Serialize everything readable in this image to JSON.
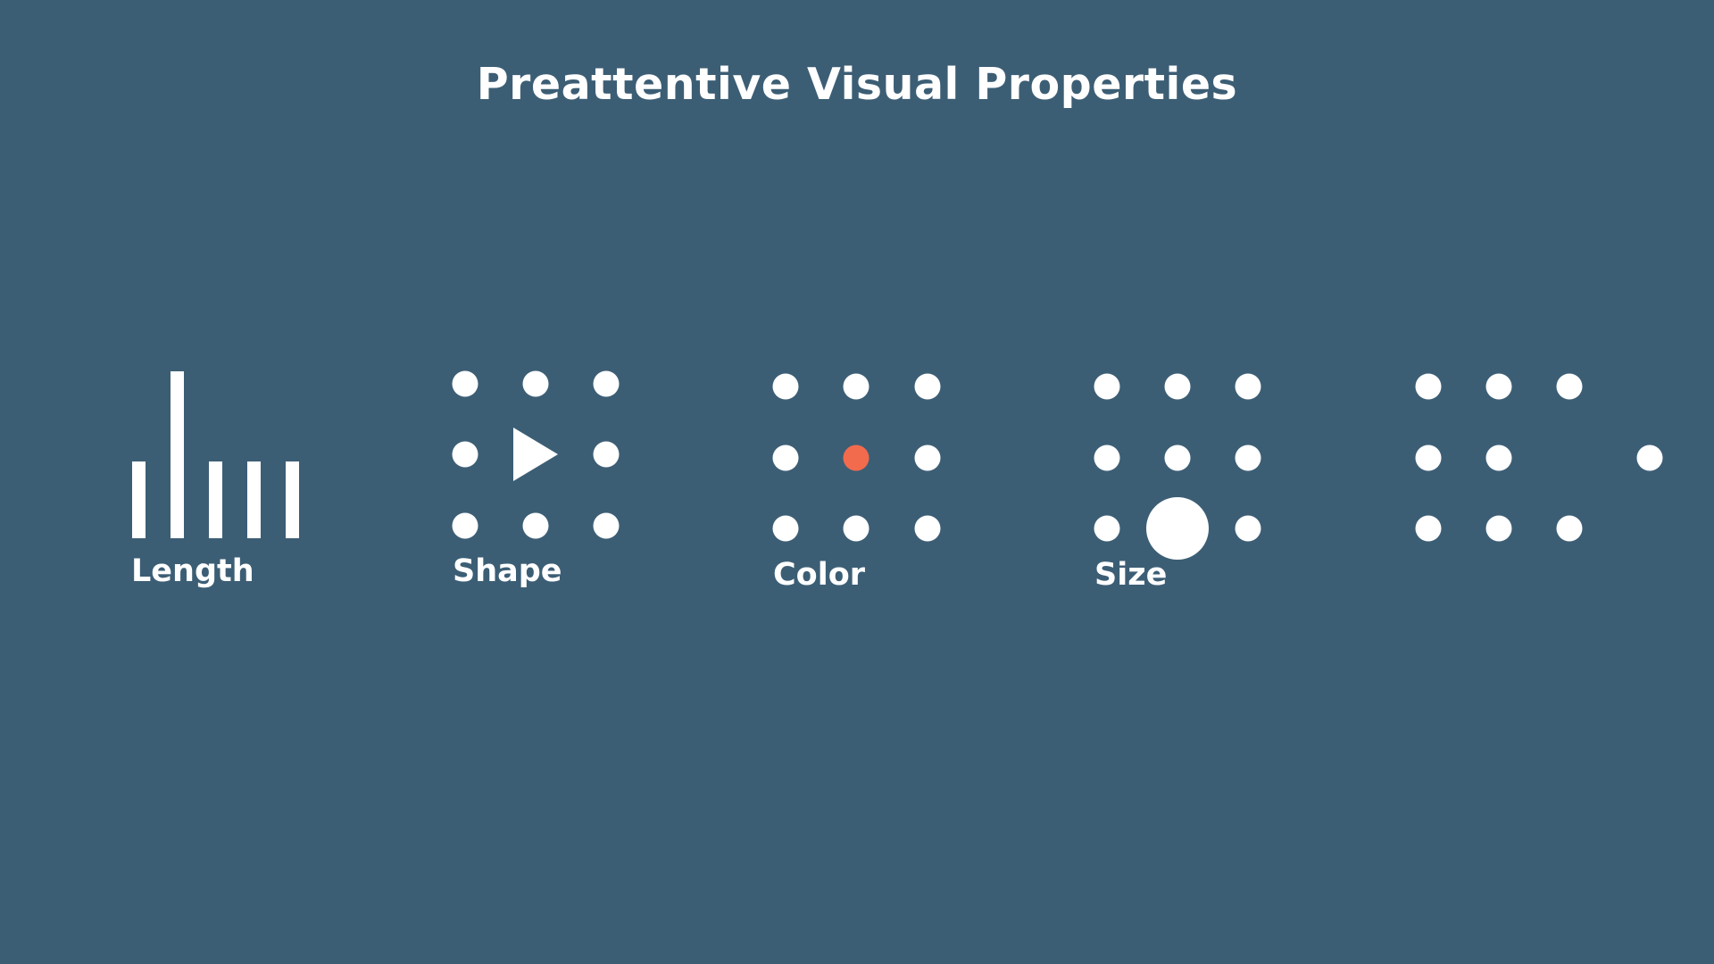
{
  "slide": {
    "title": "Preattentive Visual Properties",
    "background_color": "#3c5e75",
    "mark_color": "#ffffff",
    "accent_color": "#f26b4c"
  },
  "panels": [
    {
      "label": "Length",
      "kind": "bars",
      "bars": [
        "short",
        "tall",
        "short",
        "short",
        "short"
      ]
    },
    {
      "label": "Shape",
      "kind": "grid",
      "odd_one_out": "triangle",
      "marks": [
        "circle",
        "circle",
        "circle",
        "circle",
        "triangle",
        "circle",
        "circle",
        "circle",
        "circle"
      ]
    },
    {
      "label": "Color",
      "kind": "grid",
      "odd_one_out": "orange",
      "marks": [
        "white",
        "white",
        "white",
        "white",
        "orange",
        "white",
        "white",
        "white",
        "white"
      ]
    },
    {
      "label": "Size",
      "kind": "grid",
      "odd_one_out": "large",
      "marks": [
        "small",
        "small",
        "small",
        "small",
        "small",
        "small",
        "small",
        "large",
        "small"
      ]
    },
    {
      "label": "",
      "kind": "grid",
      "odd_one_out": "displaced",
      "marks": [
        "small",
        "small",
        "small",
        "small",
        "small",
        "displaced",
        "small",
        "small",
        "small"
      ]
    }
  ]
}
